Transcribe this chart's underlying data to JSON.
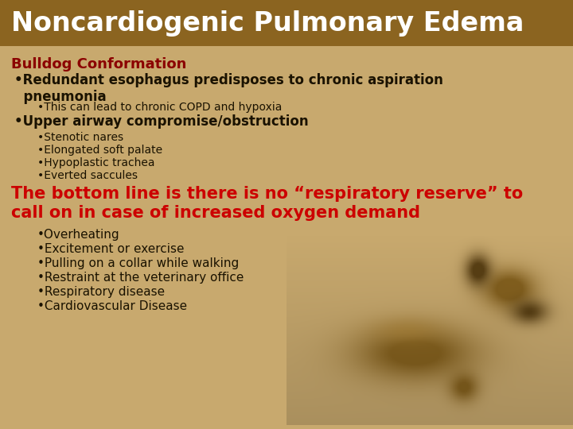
{
  "title": "Noncardiogenic Pulmonary Edema",
  "title_bg": "#8B6420",
  "title_color": "#FFFFFF",
  "title_fontsize": 24,
  "body_bg": "#C8A96E",
  "subtitle": "Bulldog Conformation",
  "subtitle_color": "#8B0000",
  "subtitle_fontsize": 13,
  "red_text": "The bottom line is there is no “respiratory reserve” to\ncall on in case of increased oxygen demand",
  "red_color": "#CC0000",
  "red_fontsize": 15,
  "dark_color": "#1a1200",
  "lines_bold": [
    {
      "text": "•Redundant esophagus predisposes to chronic aspiration\n  pneumonia",
      "bold": true,
      "size": 12,
      "indent": 0.025
    },
    {
      "text": "•This can lead to chronic COPD and hypoxia",
      "bold": false,
      "size": 10,
      "indent": 0.065
    },
    {
      "text": "•Upper airway compromise/obstruction",
      "bold": true,
      "size": 12,
      "indent": 0.025
    },
    {
      "text": "•Stenotic nares",
      "bold": false,
      "size": 10,
      "indent": 0.065
    },
    {
      "text": "•Elongated soft palate",
      "bold": false,
      "size": 10,
      "indent": 0.065
    },
    {
      "text": "•Hypoplastic trachea",
      "bold": false,
      "size": 10,
      "indent": 0.065
    },
    {
      "text": "•Everted saccules",
      "bold": false,
      "size": 10,
      "indent": 0.065
    }
  ],
  "lines_bottom": [
    {
      "text": "•Overheating",
      "size": 11,
      "indent": 0.065
    },
    {
      "text": "•Excitement or exercise",
      "size": 11,
      "indent": 0.065
    },
    {
      "text": "•Pulling on a collar while walking",
      "size": 11,
      "indent": 0.065
    },
    {
      "text": "•Restraint at the veterinary office",
      "size": 11,
      "indent": 0.065
    },
    {
      "text": "•Respiratory disease",
      "size": 11,
      "indent": 0.065
    },
    {
      "text": "•Cardiovascular Disease",
      "size": 11,
      "indent": 0.065
    }
  ]
}
